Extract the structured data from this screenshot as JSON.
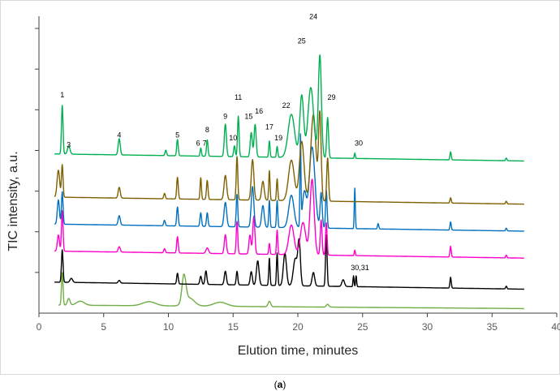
{
  "chart_data": {
    "type": "line",
    "xlabel": "Elution time, minutes",
    "ylabel": "TIC intensity, a.u.",
    "xlim": [
      0,
      40
    ],
    "xticks": [
      0,
      5,
      10,
      15,
      20,
      25,
      30,
      35,
      40
    ],
    "ylim": [
      0,
      11
    ],
    "grid": false,
    "legend": "none",
    "panel_label": {
      "open": "(",
      "letter": "a",
      "close": ")"
    },
    "series": [
      {
        "color": "#70ad47",
        "baseline": 0.3,
        "peaks": [
          [
            1.8,
            1.2,
            0.06
          ],
          [
            2.3,
            0.25,
            0.1
          ],
          [
            3.2,
            0.15,
            0.3
          ],
          [
            8.5,
            0.15,
            0.5
          ],
          [
            11.2,
            1.0,
            0.15
          ],
          [
            11.6,
            0.3,
            0.4
          ],
          [
            14,
            0.15,
            0.5
          ],
          [
            17.8,
            0.2,
            0.1
          ],
          [
            22.3,
            0.1,
            0.1
          ]
        ]
      },
      {
        "color": "#000000",
        "baseline": 1.15,
        "peaks": [
          [
            1.8,
            1.2,
            0.06
          ],
          [
            2.5,
            0.15,
            0.1
          ],
          [
            6.2,
            0.1,
            0.08
          ],
          [
            10.7,
            0.4,
            0.06
          ],
          [
            12.5,
            0.3,
            0.07
          ],
          [
            12.9,
            0.5,
            0.07
          ],
          [
            14.4,
            0.5,
            0.08
          ],
          [
            15.3,
            0.5,
            0.06
          ],
          [
            16.4,
            0.5,
            0.08
          ],
          [
            16.9,
            0.9,
            0.1
          ],
          [
            17.8,
            1.0,
            0.05
          ],
          [
            18.4,
            1.2,
            0.05
          ],
          [
            19.0,
            1.2,
            0.12
          ],
          [
            19.8,
            1.0,
            0.15
          ],
          [
            20.1,
            1.6,
            0.1
          ],
          [
            21.2,
            0.5,
            0.1
          ],
          [
            22.2,
            1.9,
            0.06
          ],
          [
            23.5,
            0.25,
            0.1
          ],
          [
            24.3,
            0.4,
            0.04
          ],
          [
            24.5,
            0.4,
            0.04
          ],
          [
            31.8,
            0.4,
            0.05
          ],
          [
            36.1,
            0.1,
            0.05
          ]
        ]
      },
      {
        "color": "#ff00cc",
        "baseline": 2.3,
        "peaks": [
          [
            1.5,
            0.6,
            0.08
          ],
          [
            1.8,
            1.5,
            0.06
          ],
          [
            6.2,
            0.2,
            0.08
          ],
          [
            9.7,
            0.15,
            0.06
          ],
          [
            10.7,
            0.6,
            0.06
          ],
          [
            13.0,
            0.2,
            0.1
          ],
          [
            14.4,
            0.7,
            0.08
          ],
          [
            15.3,
            1.2,
            0.06
          ],
          [
            16.3,
            0.7,
            0.08
          ],
          [
            16.6,
            1.4,
            0.08
          ],
          [
            17.8,
            0.4,
            0.05
          ],
          [
            18.4,
            0.9,
            0.05
          ],
          [
            19.5,
            1.1,
            0.2
          ],
          [
            20.4,
            1.2,
            0.2
          ],
          [
            21.1,
            2.8,
            0.16
          ],
          [
            21.8,
            1.3,
            0.07
          ],
          [
            22.2,
            1.2,
            0.06
          ],
          [
            24.4,
            0.2,
            0.04
          ],
          [
            31.8,
            0.4,
            0.05
          ],
          [
            36.1,
            0.1,
            0.05
          ]
        ]
      },
      {
        "color": "#0070c0",
        "baseline": 3.3,
        "peaks": [
          [
            1.5,
            0.9,
            0.08
          ],
          [
            1.8,
            1.2,
            0.06
          ],
          [
            6.2,
            0.35,
            0.08
          ],
          [
            9.7,
            0.2,
            0.06
          ],
          [
            10.7,
            0.7,
            0.06
          ],
          [
            12.5,
            0.5,
            0.06
          ],
          [
            13.0,
            0.5,
            0.06
          ],
          [
            14.4,
            0.9,
            0.1
          ],
          [
            15.3,
            1.2,
            0.06
          ],
          [
            16.5,
            1.5,
            0.1
          ],
          [
            17.3,
            0.8,
            0.1
          ],
          [
            17.8,
            1.0,
            0.05
          ],
          [
            18.4,
            1.0,
            0.05
          ],
          [
            19.5,
            1.2,
            0.2
          ],
          [
            20.2,
            3.3,
            0.04
          ],
          [
            20.5,
            1.3,
            0.15
          ],
          [
            21.1,
            3.0,
            0.22
          ],
          [
            21.8,
            1.3,
            0.08
          ],
          [
            22.2,
            1.4,
            0.06
          ],
          [
            24.4,
            1.5,
            0.04
          ],
          [
            26.2,
            0.2,
            0.05
          ],
          [
            31.8,
            0.3,
            0.05
          ],
          [
            36.1,
            0.1,
            0.05
          ]
        ]
      },
      {
        "color": "#7f6000",
        "baseline": 4.3,
        "peaks": [
          [
            1.5,
            1.0,
            0.1
          ],
          [
            1.8,
            1.2,
            0.06
          ],
          [
            6.2,
            0.4,
            0.08
          ],
          [
            9.7,
            0.2,
            0.06
          ],
          [
            10.7,
            0.8,
            0.06
          ],
          [
            12.5,
            0.8,
            0.05
          ],
          [
            13.0,
            0.7,
            0.06
          ],
          [
            14.4,
            0.9,
            0.1
          ],
          [
            15.3,
            1.6,
            0.06
          ],
          [
            16.5,
            1.5,
            0.1
          ],
          [
            17.3,
            0.7,
            0.1
          ],
          [
            17.8,
            1.1,
            0.05
          ],
          [
            18.4,
            0.8,
            0.05
          ],
          [
            19.5,
            1.5,
            0.22
          ],
          [
            20.3,
            2.2,
            0.18
          ],
          [
            21.2,
            3.2,
            0.2
          ],
          [
            21.7,
            3.2,
            0.1
          ],
          [
            22.3,
            1.6,
            0.07
          ],
          [
            31.8,
            0.2,
            0.05
          ],
          [
            36.1,
            0.1,
            0.05
          ]
        ]
      },
      {
        "color": "#00b050",
        "baseline": 5.9,
        "peaks": [
          [
            1.8,
            1.8,
            0.06
          ],
          [
            2.3,
            0.3,
            0.1
          ],
          [
            6.2,
            0.6,
            0.08
          ],
          [
            9.8,
            0.2,
            0.06
          ],
          [
            10.7,
            0.6,
            0.06
          ],
          [
            12.5,
            0.3,
            0.05
          ],
          [
            13.0,
            0.6,
            0.06
          ],
          [
            14.4,
            1.2,
            0.08
          ],
          [
            15.1,
            0.4,
            0.06
          ],
          [
            15.4,
            1.5,
            0.06
          ],
          [
            16.4,
            0.9,
            0.08
          ],
          [
            16.7,
            1.2,
            0.08
          ],
          [
            17.8,
            0.6,
            0.05
          ],
          [
            18.4,
            0.4,
            0.05
          ],
          [
            19.5,
            1.6,
            0.25
          ],
          [
            20.3,
            2.3,
            0.15
          ],
          [
            21.0,
            2.6,
            0.22
          ],
          [
            21.7,
            3.8,
            0.12
          ],
          [
            22.3,
            1.5,
            0.07
          ],
          [
            24.4,
            0.2,
            0.04
          ],
          [
            31.8,
            0.3,
            0.05
          ],
          [
            36.1,
            0.1,
            0.05
          ]
        ]
      }
    ],
    "annotations": [
      {
        "text": "1",
        "x": 1.8,
        "y": 8.0
      },
      {
        "text": "3",
        "x": 2.3,
        "y": 6.15
      },
      {
        "text": "4",
        "x": 6.2,
        "y": 6.5
      },
      {
        "text": "5",
        "x": 10.7,
        "y": 6.5
      },
      {
        "text": "6",
        "x": 12.3,
        "y": 6.2
      },
      {
        "text": "7",
        "x": 12.8,
        "y": 6.2
      },
      {
        "text": "8",
        "x": 13.0,
        "y": 6.7
      },
      {
        "text": "9",
        "x": 14.4,
        "y": 7.2
      },
      {
        "text": "10",
        "x": 15.0,
        "y": 6.4
      },
      {
        "text": "11",
        "x": 15.4,
        "y": 7.9
      },
      {
        "text": "15",
        "x": 16.2,
        "y": 7.2
      },
      {
        "text": "16",
        "x": 17.0,
        "y": 7.4
      },
      {
        "text": "17",
        "x": 17.8,
        "y": 6.8
      },
      {
        "text": "19",
        "x": 18.5,
        "y": 6.4
      },
      {
        "text": "22",
        "x": 19.1,
        "y": 7.6
      },
      {
        "text": "24",
        "x": 21.2,
        "y": 10.9
      },
      {
        "text": "25",
        "x": 20.3,
        "y": 10.0
      },
      {
        "text": "29",
        "x": 22.6,
        "y": 7.9
      },
      {
        "text": "30",
        "x": 24.7,
        "y": 6.2
      },
      {
        "text": "30,31",
        "x": 24.8,
        "y": 1.6
      }
    ]
  }
}
